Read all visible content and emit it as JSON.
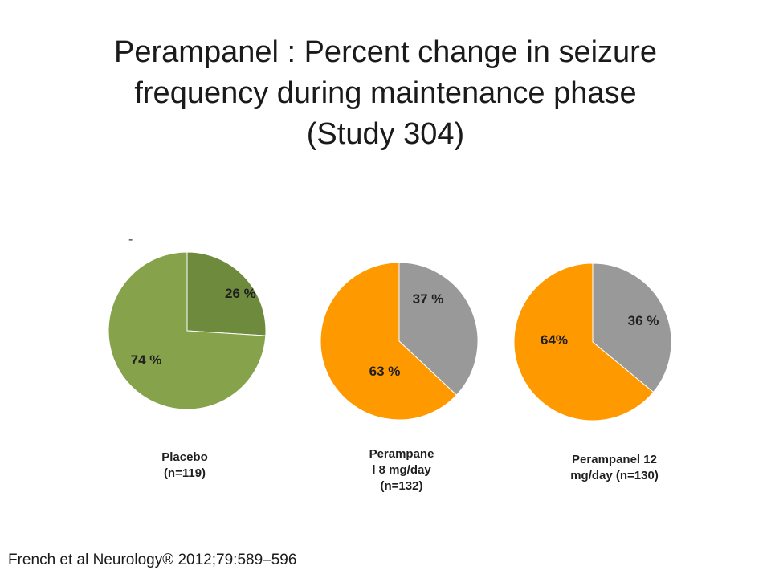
{
  "title_lines": [
    "Perampanel : Percent change in seizure",
    "frequency during maintenance phase",
    "(Study 304)"
  ],
  "dash": "-",
  "chart_data": [
    {
      "type": "pie",
      "caption_lines": [
        "Placebo",
        "(n=119)"
      ],
      "slices": [
        {
          "value": 26,
          "label": "26 %",
          "color": "#6e8b3d"
        },
        {
          "value": 74,
          "label": "74 %",
          "color": "#86a34b"
        }
      ]
    },
    {
      "type": "pie",
      "caption_lines": [
        "Perampane",
        "l 8 mg/day",
        "(n=132)"
      ],
      "slices": [
        {
          "value": 37,
          "label": "37 %",
          "color": "#999999"
        },
        {
          "value": 63,
          "label": "63 %",
          "color": "#ff9900"
        }
      ]
    },
    {
      "type": "pie",
      "caption_lines": [
        "Perampanel 12",
        "mg/day (n=130)"
      ],
      "slices": [
        {
          "value": 36,
          "label": "36 %",
          "color": "#999999"
        },
        {
          "value": 64,
          "label": "64%",
          "color": "#ff9900"
        }
      ]
    }
  ],
  "footer": "French et al Neurology® 2012;79:589–596"
}
